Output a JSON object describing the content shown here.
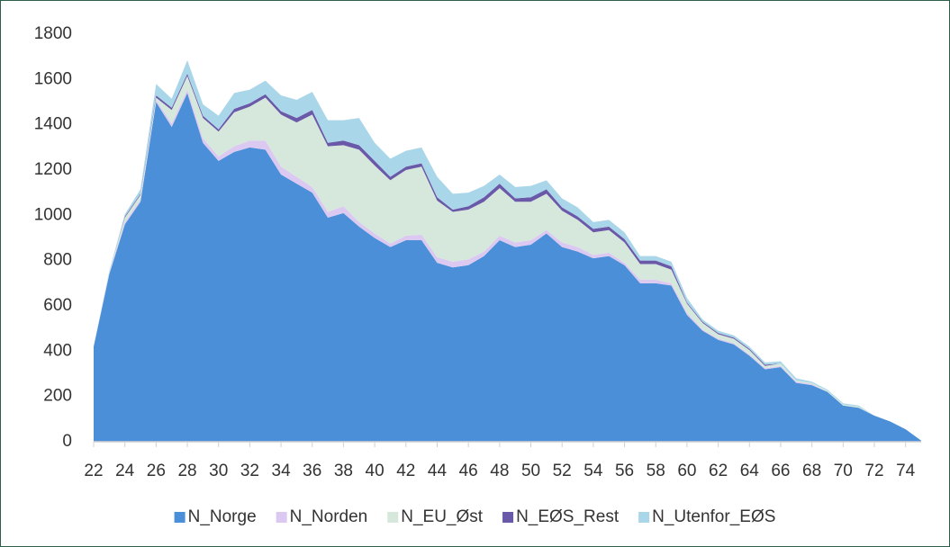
{
  "chart_data": {
    "type": "stacked-area",
    "x": [
      22,
      23,
      24,
      25,
      26,
      27,
      28,
      29,
      30,
      31,
      32,
      33,
      34,
      35,
      36,
      37,
      38,
      39,
      40,
      41,
      42,
      43,
      44,
      45,
      46,
      47,
      48,
      49,
      50,
      51,
      52,
      53,
      54,
      55,
      56,
      57,
      58,
      59,
      60,
      61,
      62,
      63,
      64,
      65,
      66,
      67,
      68,
      69,
      70,
      71,
      72,
      73,
      74,
      75
    ],
    "xlim": [
      22,
      75
    ],
    "xticks": [
      22,
      24,
      26,
      28,
      30,
      32,
      34,
      36,
      38,
      40,
      42,
      44,
      46,
      48,
      50,
      52,
      54,
      56,
      58,
      60,
      62,
      64,
      66,
      68,
      70,
      72,
      74
    ],
    "ylim": [
      0,
      1800
    ],
    "yticks": [
      0,
      200,
      400,
      600,
      800,
      1000,
      1200,
      1400,
      1600,
      1800
    ],
    "legend": "bottom",
    "series": [
      {
        "name": "N_Norge",
        "color": "#4a8fd8",
        "values": [
          420,
          740,
          960,
          1060,
          1500,
          1390,
          1540,
          1320,
          1240,
          1280,
          1300,
          1290,
          1180,
          1140,
          1100,
          990,
          1010,
          950,
          900,
          860,
          890,
          890,
          790,
          770,
          780,
          820,
          890,
          860,
          870,
          920,
          860,
          840,
          810,
          820,
          780,
          700,
          700,
          690,
          560,
          490,
          450,
          430,
          380,
          320,
          330,
          260,
          250,
          220,
          160,
          150,
          115,
          90,
          55,
          5
        ]
      },
      {
        "name": "N_Norden",
        "color": "#dcc9f2",
        "values": [
          2,
          5,
          10,
          10,
          10,
          15,
          15,
          20,
          20,
          25,
          30,
          40,
          35,
          30,
          25,
          25,
          30,
          20,
          20,
          15,
          20,
          25,
          25,
          25,
          25,
          20,
          20,
          20,
          20,
          15,
          20,
          20,
          15,
          15,
          10,
          15,
          15,
          10,
          10,
          5,
          5,
          5,
          5,
          5,
          5,
          5,
          5,
          0,
          0,
          0,
          0,
          0,
          0,
          0
        ]
      },
      {
        "name": "N_EU_Øst",
        "color": "#d6e8db",
        "values": [
          0,
          5,
          20,
          20,
          10,
          60,
          60,
          90,
          110,
          150,
          150,
          190,
          230,
          240,
          320,
          290,
          270,
          320,
          300,
          280,
          290,
          300,
          250,
          220,
          220,
          220,
          210,
          180,
          170,
          160,
          140,
          120,
          100,
          100,
          90,
          70,
          70,
          60,
          40,
          30,
          20,
          20,
          20,
          10,
          10,
          5,
          5,
          5,
          5,
          5,
          0,
          0,
          0,
          0
        ]
      },
      {
        "name": "N_EØS_Rest",
        "color": "#6a58a8",
        "values": [
          0,
          0,
          5,
          5,
          10,
          10,
          10,
          10,
          10,
          15,
          15,
          15,
          15,
          20,
          20,
          15,
          20,
          20,
          20,
          15,
          15,
          15,
          15,
          10,
          15,
          20,
          20,
          15,
          20,
          20,
          15,
          15,
          15,
          15,
          15,
          15,
          15,
          15,
          5,
          5,
          5,
          5,
          5,
          5,
          0,
          0,
          0,
          0,
          0,
          0,
          0,
          0,
          0,
          0
        ]
      },
      {
        "name": "N_Utenfor_EØS",
        "color": "#a9d6e9",
        "values": [
          0,
          5,
          10,
          20,
          50,
          40,
          60,
          50,
          60,
          70,
          60,
          60,
          70,
          80,
          80,
          100,
          90,
          120,
          80,
          80,
          70,
          70,
          90,
          70,
          60,
          50,
          40,
          50,
          50,
          40,
          40,
          40,
          30,
          30,
          30,
          20,
          20,
          20,
          20,
          10,
          10,
          10,
          10,
          10,
          10,
          10,
          5,
          5,
          5,
          5,
          0,
          0,
          0,
          0
        ]
      }
    ]
  }
}
